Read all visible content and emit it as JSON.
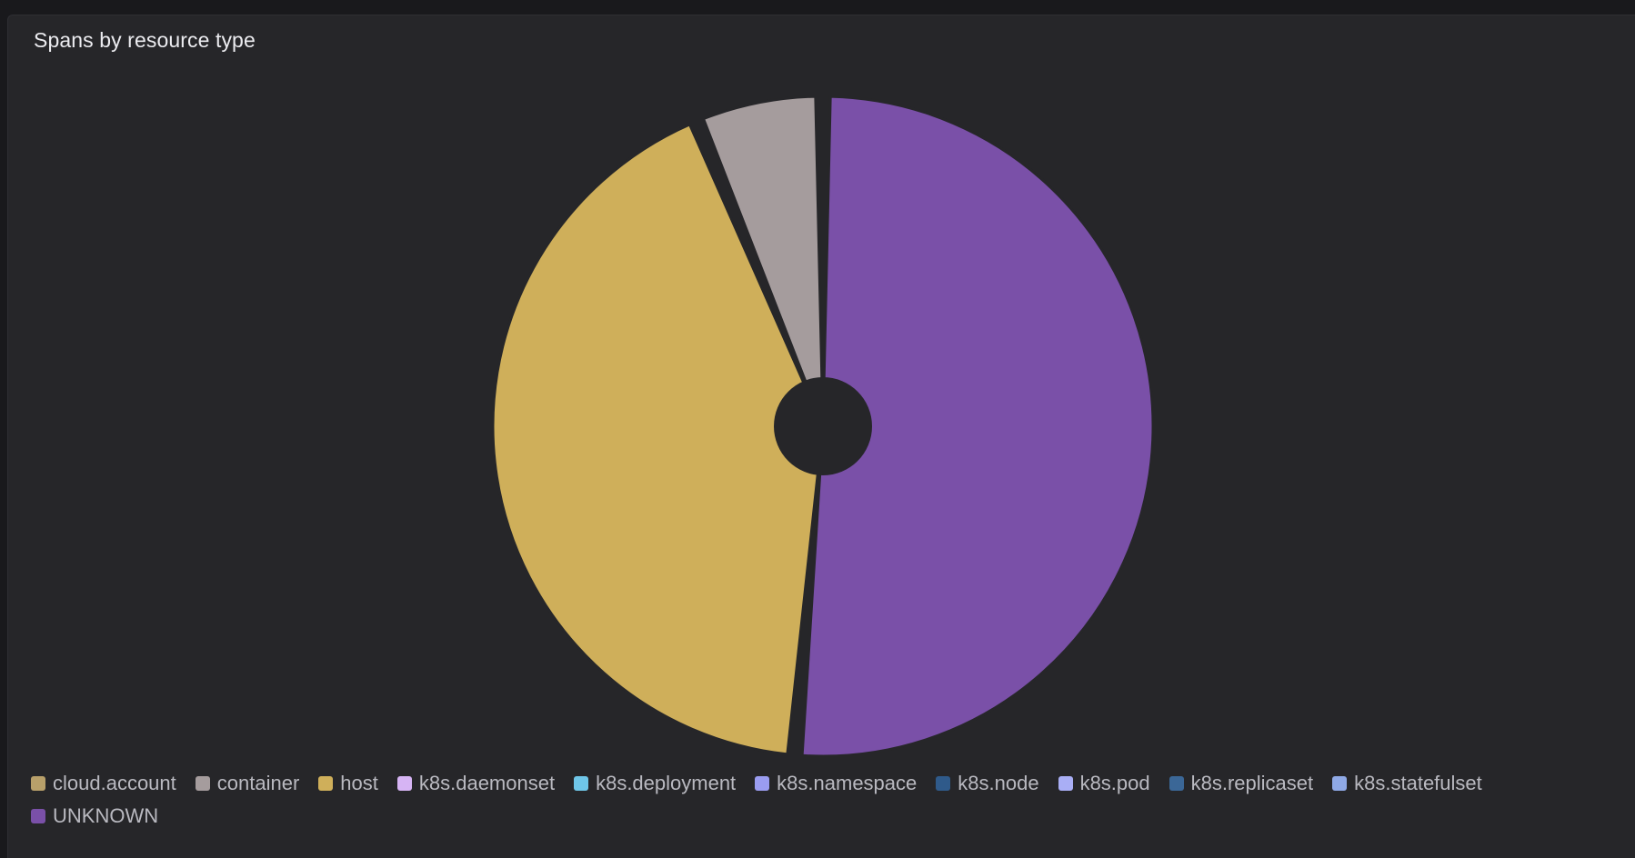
{
  "panel": {
    "title": "Spans by resource type"
  },
  "chart_data": {
    "type": "pie",
    "title": "Spans by resource type",
    "legend_position": "bottom",
    "series": [
      {
        "name": "cloud.account",
        "value": 0,
        "color": "#b8a06a"
      },
      {
        "name": "container",
        "value": 6.2,
        "color": "#a59c9d"
      },
      {
        "name": "host",
        "value": 42.0,
        "color": "#cfaf5a"
      },
      {
        "name": "k8s.daemonset",
        "value": 0,
        "color": "#d6b4f4"
      },
      {
        "name": "k8s.deployment",
        "value": 0,
        "color": "#6fc6e8"
      },
      {
        "name": "k8s.namespace",
        "value": 0,
        "color": "#9a9cf0"
      },
      {
        "name": "k8s.node",
        "value": 0,
        "color": "#2f5a8a"
      },
      {
        "name": "k8s.pod",
        "value": 0,
        "color": "#a9aef5"
      },
      {
        "name": "k8s.replicaset",
        "value": 0,
        "color": "#3b6797"
      },
      {
        "name": "k8s.statefulset",
        "value": 0,
        "color": "#8fa9e6"
      },
      {
        "name": "UNKNOWN",
        "value": 50.9,
        "color": "#7a50a8"
      }
    ]
  }
}
